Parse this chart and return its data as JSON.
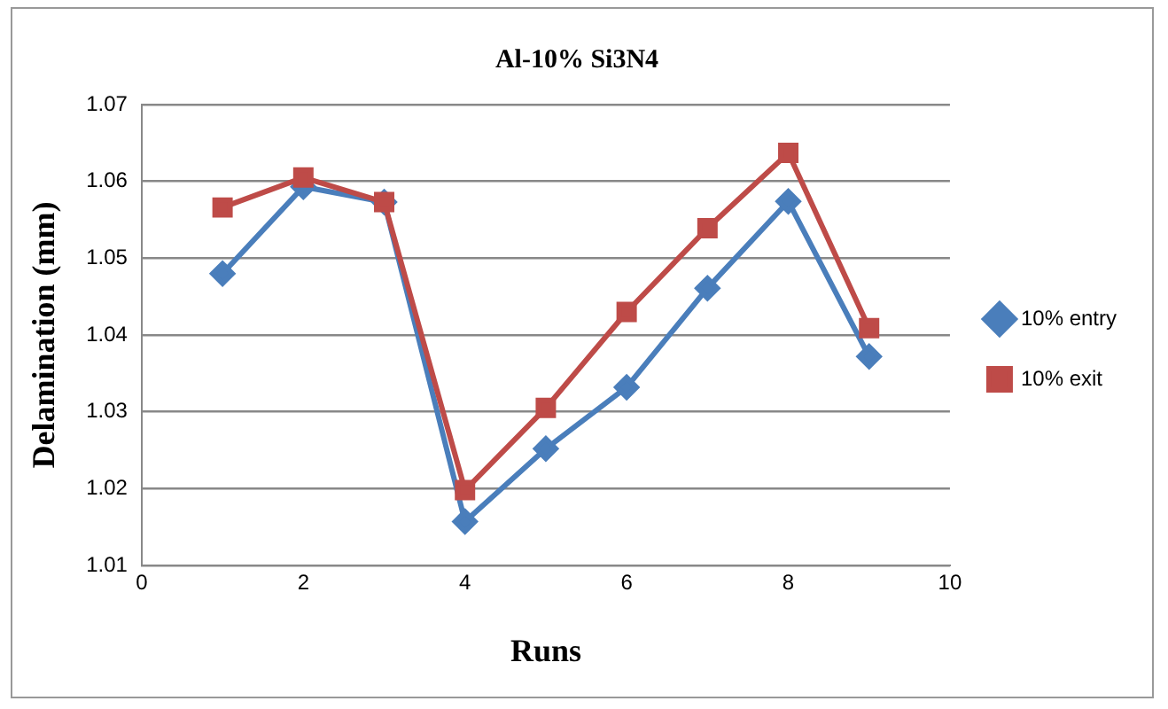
{
  "chart_data": {
    "type": "line",
    "title": "Al-10% Si3N4",
    "xlabel": "Runs",
    "ylabel": "Delamination (mm)",
    "x": [
      1,
      2,
      3,
      4,
      5,
      6,
      7,
      8,
      9
    ],
    "series": [
      {
        "name": "10% entry",
        "color": "#4a7ebb",
        "marker": "diamond",
        "values": [
          1.048,
          1.0593,
          1.0573,
          1.0157,
          1.0252,
          1.0332,
          1.0461,
          1.0574,
          1.0372
        ]
      },
      {
        "name": "10% exit",
        "color": "#be4b48",
        "marker": "square",
        "values": [
          1.0566,
          1.0605,
          1.0573,
          1.0198,
          1.0305,
          1.043,
          1.0539,
          1.0637,
          1.0409
        ]
      }
    ],
    "xlim": [
      0,
      10
    ],
    "xticks": [
      0,
      2,
      4,
      6,
      8,
      10
    ],
    "ylim": [
      1.01,
      1.07
    ],
    "yticks": [
      1.01,
      1.02,
      1.03,
      1.04,
      1.05,
      1.06,
      1.07
    ],
    "grid": "y",
    "legend": "right",
    "line_style": "solid"
  }
}
